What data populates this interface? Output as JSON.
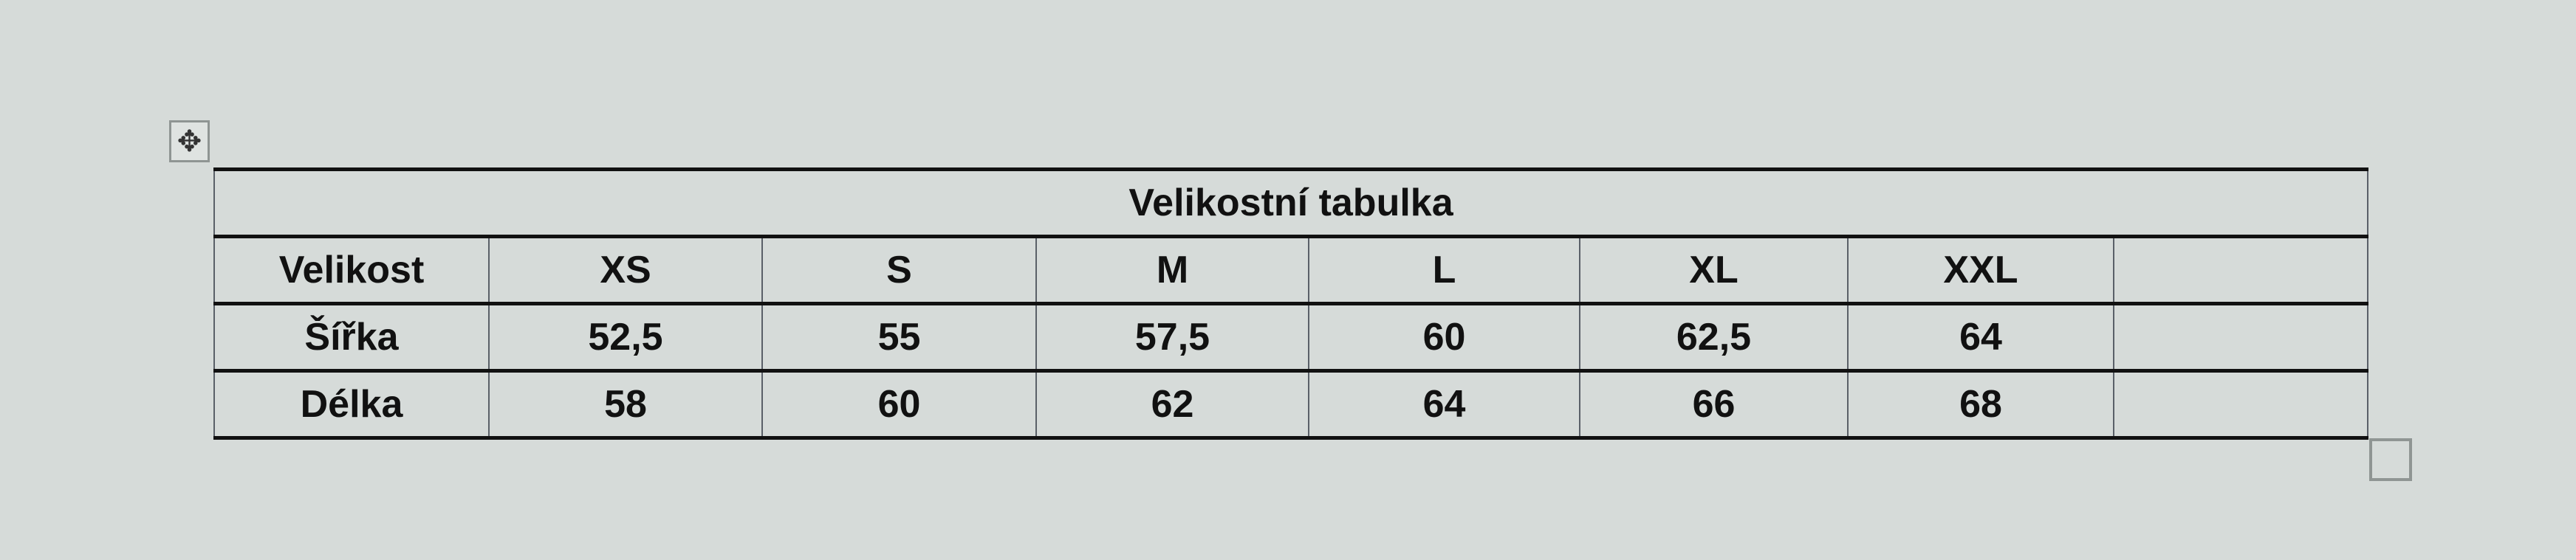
{
  "table": {
    "title": "Velikostní tabulka",
    "header": [
      "Velikost",
      "XS",
      "S",
      "M",
      "L",
      "XL",
      "XXL",
      ""
    ],
    "rows": [
      [
        "Šířka",
        "52,5",
        "55",
        "57,5",
        "60",
        "62,5",
        "64",
        ""
      ],
      [
        "Délka",
        "58",
        "60",
        "62",
        "64",
        "66",
        "68",
        ""
      ]
    ]
  },
  "icons": {
    "move": "move-arrows-icon",
    "resize": "resize-handle-icon"
  }
}
